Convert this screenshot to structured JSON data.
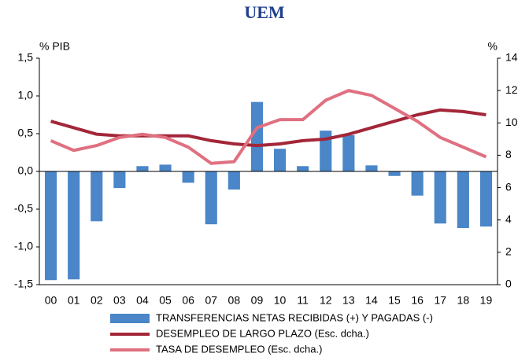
{
  "chart_data": {
    "type": "bar_line",
    "title": "UEM",
    "y_label": "% PIB",
    "y2_label": "%",
    "categories": [
      "00",
      "01",
      "02",
      "03",
      "04",
      "05",
      "06",
      "07",
      "08",
      "09",
      "10",
      "11",
      "12",
      "13",
      "14",
      "15",
      "16",
      "17",
      "18",
      "19"
    ],
    "ylim": [
      -1.5,
      1.5
    ],
    "yticks": [
      {
        "value": 1.5,
        "label": "1,5"
      },
      {
        "value": 1.0,
        "label": "1,0"
      },
      {
        "value": 0.5,
        "label": "0,5"
      },
      {
        "value": 0,
        "label": "0,0"
      },
      {
        "value": -0.5,
        "label": "-0,5"
      },
      {
        "value": -1.0,
        "label": "-1,0"
      },
      {
        "value": -1.5,
        "label": "-1,5"
      }
    ],
    "y2lim": [
      0,
      14
    ],
    "y2ticks": [
      0,
      2,
      4,
      6,
      8,
      10,
      12,
      14
    ],
    "series": [
      {
        "name": "TRANSFERENCIAS NETAS RECIBIDAS (+) Y PAGADAS (-)",
        "color": "#4a86c8",
        "type": "bar",
        "values": [
          -1.44,
          -1.43,
          -0.66,
          -0.22,
          0.07,
          0.09,
          -0.15,
          -0.7,
          -0.24,
          0.92,
          0.3,
          0.07,
          0.54,
          0.48,
          0.08,
          -0.06,
          -0.32,
          -0.69,
          -0.75,
          -0.73
        ]
      },
      {
        "name": "DESEMPLEO DE LARGO PLAZO (Esc. dcha.)",
        "color": "#a32638",
        "type": "line",
        "axis": "y2",
        "values": [
          10.1,
          9.7,
          9.3,
          9.2,
          9.2,
          9.2,
          9.2,
          8.9,
          8.7,
          8.6,
          8.7,
          8.9,
          9.0,
          9.3,
          9.7,
          10.1,
          10.5,
          10.8,
          10.7,
          10.5
        ]
      },
      {
        "name": "TASA DE DESEMPLEO (Esc. dcha.)",
        "color": "#e07080",
        "type": "line",
        "axis": "y2",
        "values": [
          8.9,
          8.3,
          8.6,
          9.1,
          9.3,
          9.1,
          8.5,
          7.5,
          7.6,
          9.7,
          10.2,
          10.2,
          11.4,
          12.0,
          11.7,
          10.9,
          10.1,
          9.1,
          8.5,
          7.9
        ]
      }
    ]
  }
}
